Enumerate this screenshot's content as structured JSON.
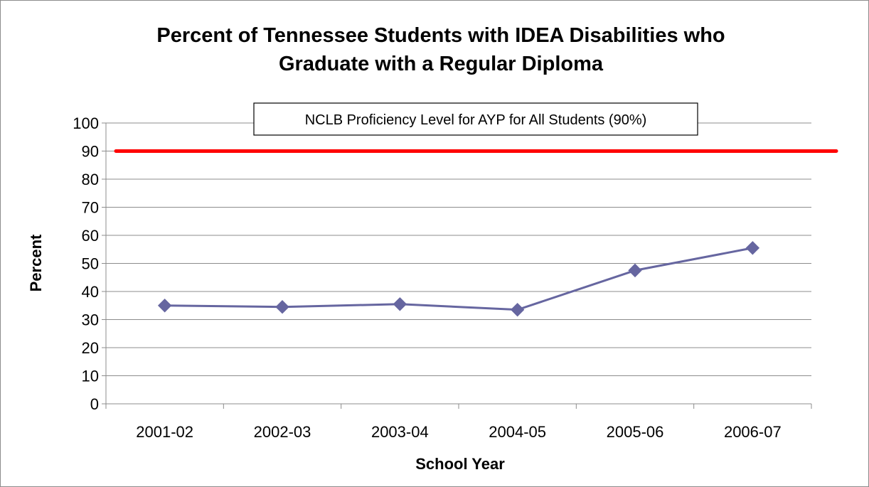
{
  "chart_data": {
    "type": "line",
    "title_lines": [
      "Percent of Tennessee Students with IDEA Disabilities who",
      "Graduate with a Regular Diploma"
    ],
    "xlabel": "School Year",
    "ylabel": "Percent",
    "categories": [
      "2001-02",
      "2002-03",
      "2003-04",
      "2004-05",
      "2005-06",
      "2006-07"
    ],
    "series": [
      {
        "values": [
          35,
          34.5,
          35.5,
          33.5,
          47.5,
          55.5
        ],
        "color": "#6666a0",
        "marker": "diamond"
      }
    ],
    "reference_line": {
      "value": 90,
      "label": "NCLB Proficiency Level for AYP for All Students (90%)",
      "color": "#ff0000"
    },
    "ylim": [
      0,
      100
    ],
    "yticks": [
      "0",
      "10",
      "20",
      "30",
      "40",
      "50",
      "60",
      "70",
      "80",
      "90",
      "100"
    ],
    "grid": true
  }
}
